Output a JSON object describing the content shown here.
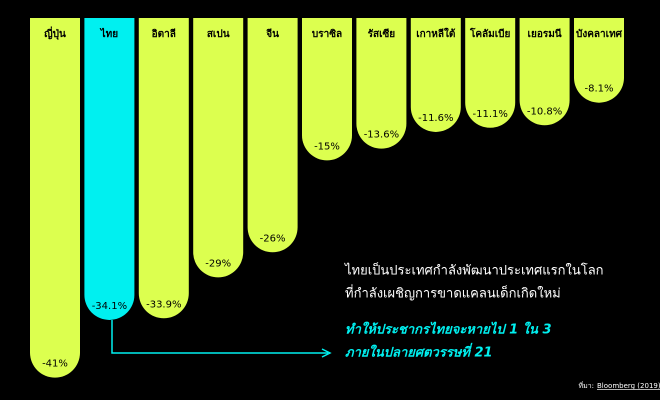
{
  "chart_data": {
    "type": "bar",
    "categories": [
      "ญี่ปุ่น",
      "ไทย",
      "อิตาลี",
      "สเปน",
      "จีน",
      "บราซิล",
      "รัสเซีย",
      "เกาหลีใต้",
      "โคลัมเบีย",
      "เยอรมนี",
      "บังคลาเทศ"
    ],
    "values": [
      -41,
      -34.1,
      -33.9,
      -29,
      -26,
      -15,
      -13.6,
      -11.6,
      -11.1,
      -10.8,
      -8.1
    ],
    "value_labels": [
      "-41%",
      "-34.1%",
      "-33.9%",
      "-29%",
      "-26%",
      "-15%",
      "-13.6%",
      "-11.6%",
      "-11.1%",
      "-10.8%",
      "-8.1%"
    ],
    "colors": [
      "#dcff4f",
      "#00f0f0",
      "#dcff4f",
      "#dcff4f",
      "#dcff4f",
      "#dcff4f",
      "#dcff4f",
      "#dcff4f",
      "#dcff4f",
      "#dcff4f",
      "#dcff4f"
    ],
    "ylim": [
      -42,
      0
    ],
    "annotation": [
      "ไทยเป็นประเทศกำลังพัฒนาประเทศแรกในโลก",
      "ที่กำลังเผชิญการขาดแคลนเด็กเกิดใหม่"
    ],
    "highlight": [
      "ทำให้ประชากรไทยจะหายไป 1 ใน 3",
      "ภายในปลายศตวรรษที่ 21"
    ],
    "source_label": "ที่มา:",
    "source_link": "Bloomberg (2019)"
  }
}
